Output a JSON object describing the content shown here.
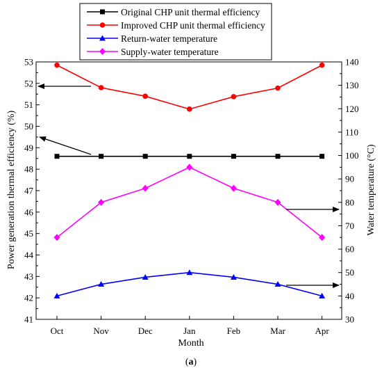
{
  "chart_data": {
    "type": "line",
    "caption_prefix": "(",
    "caption_label": "a",
    "caption_suffix": ")",
    "xlabel": "Month",
    "ylabel_left": "Power generation thermal efficiency (%)",
    "ylabel_right": "Water temperature (°C)",
    "categories": [
      "Oct",
      "Nov",
      "Dec",
      "Jan",
      "Feb",
      "Mar",
      "Apr"
    ],
    "ylim_left": [
      41,
      53
    ],
    "yticks_left": [
      41,
      42,
      43,
      44,
      45,
      46,
      47,
      48,
      49,
      50,
      51,
      52,
      53
    ],
    "ylim_right": [
      30,
      140
    ],
    "yticks_right": [
      30,
      40,
      50,
      60,
      70,
      80,
      90,
      100,
      110,
      120,
      130,
      140
    ],
    "grid": false,
    "legend_placement": "top-center",
    "series": [
      {
        "name": "Original CHP unit thermal efficiency",
        "axis": "left",
        "color": "#000000",
        "marker": "square",
        "values": [
          48.6,
          48.6,
          48.6,
          48.6,
          48.6,
          48.6,
          48.6
        ]
      },
      {
        "name": "Improved CHP unit thermal efficiency",
        "axis": "left",
        "color": "#ff0000",
        "marker": "circle",
        "values": [
          52.85,
          51.8,
          51.4,
          50.8,
          51.38,
          51.78,
          52.85
        ]
      },
      {
        "name": "Return-water temperature",
        "axis": "right",
        "color": "#0000ff",
        "marker": "triangle",
        "values": [
          40,
          45,
          48,
          50,
          48,
          45,
          40
        ]
      },
      {
        "name": "Supply-water temperature",
        "axis": "right",
        "color": "#ff00ff",
        "marker": "diamond",
        "values": [
          65,
          80,
          86,
          95,
          86,
          80,
          65
        ]
      }
    ],
    "annotations": [
      {
        "note": "arrow pointing to left axis",
        "series_index": 1
      },
      {
        "note": "arrow pointing to left axis",
        "series_index": 0
      },
      {
        "note": "arrow pointing to right axis",
        "series_index": 3
      },
      {
        "note": "arrow pointing to right axis",
        "series_index": 2
      }
    ]
  }
}
